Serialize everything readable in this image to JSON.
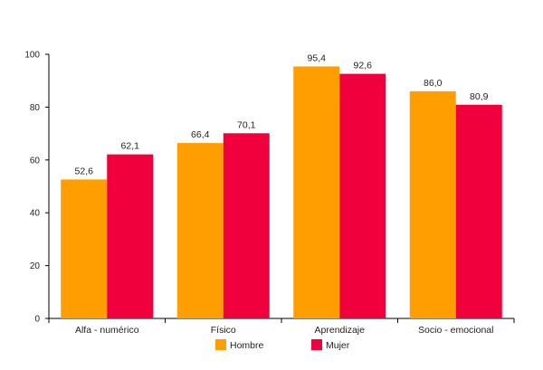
{
  "chart_data": {
    "type": "bar",
    "title": "",
    "xlabel": "",
    "ylabel": "",
    "categories": [
      "Alfa - numérico",
      "Físico",
      "Aprendizaje",
      "Socio - emocional"
    ],
    "series": [
      {
        "name": "Hombre",
        "color": "#FF9E00",
        "values": [
          52.6,
          66.4,
          95.4,
          86.0
        ],
        "labels": [
          "52,6",
          "66,4",
          "95,4",
          "86,0"
        ]
      },
      {
        "name": "Mujer",
        "color": "#F0003C",
        "values": [
          62.1,
          70.1,
          92.6,
          80.9
        ],
        "labels": [
          "62,1",
          "70,1",
          "92,6",
          "80,9"
        ]
      }
    ],
    "ylim": [
      0,
      100
    ],
    "yticks": [
      0,
      20,
      40,
      60,
      80,
      100
    ],
    "grid": false,
    "legend_position": "bottom-center"
  }
}
